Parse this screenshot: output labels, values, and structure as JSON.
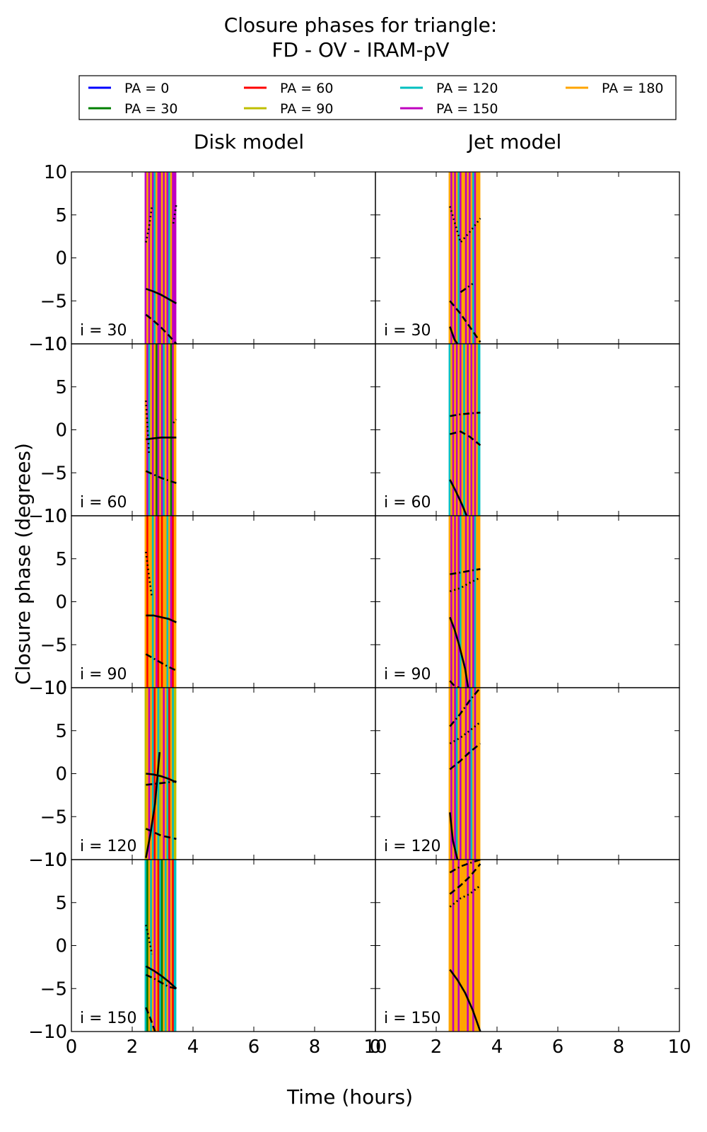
{
  "chart_data": {
    "type": "line",
    "title": "Closure phases for triangle:",
    "subtitle": "FD - OV - IRAM-pV",
    "xlabel": "Time (hours)",
    "ylabel": "Closure phase (degrees)",
    "xlim": [
      0,
      10
    ],
    "ylim": [
      -10,
      10
    ],
    "xticks": [
      0,
      2,
      4,
      6,
      8,
      10
    ],
    "yticks": [
      -10,
      -5,
      0,
      5,
      10
    ],
    "legend_position": "top",
    "legend": [
      {
        "label": "PA = 0",
        "color": "#0000ff"
      },
      {
        "label": "PA = 30",
        "color": "#008000"
      },
      {
        "label": "PA = 60",
        "color": "#ff0000"
      },
      {
        "label": "PA = 90",
        "color": "#bfbf00"
      },
      {
        "label": "PA = 120",
        "color": "#00bfbf"
      },
      {
        "label": "PA = 150",
        "color": "#bf00bf"
      },
      {
        "label": "PA = 180",
        "color": "#ffa500"
      }
    ],
    "columns": [
      "Disk model",
      "Jet model"
    ],
    "rows": [
      "i = 30",
      "i = 60",
      "i = 90",
      "i = 120",
      "i = 150"
    ],
    "panels": [
      {
        "row": 0,
        "col": 0,
        "stripes": {
          "start": 2.45,
          "end": 3.45,
          "step": 0.06,
          "colors": [
            "#bf00bf",
            "#ffa500",
            "#bf00bf",
            "#ffa500",
            "#bf00bf",
            "#00bfbf",
            "#ffa500",
            "#bf00bf"
          ]
        },
        "curves": [
          {
            "x": [
              2.45,
              2.7,
              2.95,
              3.2,
              3.45
            ],
            "y": [
              -3.6,
              -3.9,
              -4.3,
              -4.8,
              -5.3
            ],
            "dash": "solid"
          },
          {
            "x": [
              2.45,
              2.7,
              2.95,
              3.2,
              3.45
            ],
            "y": [
              -6.6,
              -7.3,
              -8.1,
              -9.0,
              -10.0
            ],
            "dash": "dashed"
          },
          {
            "x": [
              2.45,
              2.55,
              2.65
            ],
            "y": [
              1.8,
              3.5,
              6.0
            ],
            "dash": "dotted"
          },
          {
            "x": [
              3.35,
              3.45
            ],
            "y": [
              4.0,
              6.2
            ],
            "dash": "dotted"
          }
        ]
      },
      {
        "row": 0,
        "col": 1,
        "stripes": {
          "start": 2.45,
          "end": 3.45,
          "step": 0.06,
          "colors": [
            "#ffa500",
            "#bf00bf",
            "#ffa500",
            "#bf00bf",
            "#ffa500",
            "#00bfbf",
            "#bf00bf",
            "#ffa500"
          ]
        },
        "curves": [
          {
            "x": [
              2.45,
              2.6,
              2.7
            ],
            "y": [
              -8.0,
              -9.5,
              -10.0
            ],
            "dash": "solid"
          },
          {
            "x": [
              2.45,
              2.8,
              3.1,
              3.45
            ],
            "y": [
              -5.0,
              -6.5,
              -8.0,
              -9.8
            ],
            "dash": "dashed"
          },
          {
            "x": [
              2.45,
              2.8,
              3.1,
              3.45
            ],
            "y": [
              6.0,
              1.8,
              3.0,
              4.6
            ],
            "dash": "dotted"
          },
          {
            "x": [
              2.8,
              3.2
            ],
            "y": [
              -4.0,
              -3.0
            ],
            "dash": "dashdot"
          }
        ]
      },
      {
        "row": 1,
        "col": 0,
        "stripes": {
          "start": 2.45,
          "end": 3.45,
          "step": 0.06,
          "colors": [
            "#ffa500",
            "#bf00bf",
            "#00bfbf",
            "#ffa500",
            "#bf00bf",
            "#ffa500",
            "#008000",
            "#bf00bf"
          ]
        },
        "curves": [
          {
            "x": [
              2.45,
              2.7,
              2.95,
              3.2,
              3.45
            ],
            "y": [
              -1.1,
              -1.0,
              -0.9,
              -0.9,
              -0.9
            ],
            "dash": "solid"
          },
          {
            "x": [
              2.45,
              2.7,
              2.95,
              3.2,
              3.45
            ],
            "y": [
              -4.8,
              -5.2,
              -5.6,
              -5.9,
              -6.2
            ],
            "dash": "dashdot"
          },
          {
            "x": [
              2.45,
              2.5,
              2.55
            ],
            "y": [
              3.4,
              0.5,
              -2.8
            ],
            "dash": "dotted"
          },
          {
            "x": [
              3.35,
              3.45
            ],
            "y": [
              0.8,
              1.2
            ],
            "dash": "dotted"
          }
        ]
      },
      {
        "row": 1,
        "col": 1,
        "stripes": {
          "start": 2.45,
          "end": 3.45,
          "step": 0.06,
          "colors": [
            "#00bfbf",
            "#ffa500",
            "#bf00bf",
            "#ffa500",
            "#bf00bf",
            "#ffa500",
            "#bf00bf",
            "#ffa500"
          ]
        },
        "curves": [
          {
            "x": [
              2.45,
              2.65,
              2.85,
              3.0
            ],
            "y": [
              -5.8,
              -7.2,
              -8.7,
              -10.0
            ],
            "dash": "solid"
          },
          {
            "x": [
              2.45,
              2.8,
              3.1,
              3.45
            ],
            "y": [
              1.6,
              1.8,
              1.9,
              2.0
            ],
            "dash": "dashdot"
          },
          {
            "x": [
              2.45,
              2.8,
              3.1,
              3.45
            ],
            "y": [
              -0.5,
              -0.2,
              -0.8,
              -1.8
            ],
            "dash": "dashed"
          }
        ]
      },
      {
        "row": 2,
        "col": 0,
        "stripes": {
          "start": 2.45,
          "end": 3.45,
          "step": 0.06,
          "colors": [
            "#ffa500",
            "#ff0000",
            "#ffa500",
            "#ffa500",
            "#00bfbf",
            "#ffa500",
            "#bf00bf",
            "#ff0000"
          ]
        },
        "curves": [
          {
            "x": [
              2.45,
              2.7,
              2.95,
              3.2,
              3.45
            ],
            "y": [
              -1.6,
              -1.6,
              -1.8,
              -2.0,
              -2.4
            ],
            "dash": "solid"
          },
          {
            "x": [
              2.45,
              2.7,
              2.95,
              3.2,
              3.45
            ],
            "y": [
              -6.1,
              -6.6,
              -7.1,
              -7.6,
              -8.0
            ],
            "dash": "dashdot"
          },
          {
            "x": [
              2.45,
              2.55,
              2.65
            ],
            "y": [
              5.8,
              3.0,
              0.5
            ],
            "dash": "dotted"
          }
        ]
      },
      {
        "row": 2,
        "col": 1,
        "stripes": {
          "start": 2.45,
          "end": 3.45,
          "step": 0.06,
          "colors": [
            "#ffa500",
            "#bf00bf",
            "#ffa500",
            "#bf00bf",
            "#ffa500",
            "#bf00bf",
            "#00bfbf",
            "#ffa500"
          ]
        },
        "curves": [
          {
            "x": [
              2.45,
              2.6,
              2.75,
              2.95,
              3.05
            ],
            "y": [
              -1.8,
              -3.2,
              -5.0,
              -7.8,
              -10.0
            ],
            "dash": "solid"
          },
          {
            "x": [
              2.45,
              2.8,
              3.1,
              3.45
            ],
            "y": [
              3.2,
              3.4,
              3.6,
              3.8
            ],
            "dash": "dashdot"
          },
          {
            "x": [
              2.45,
              2.8,
              3.1,
              3.45
            ],
            "y": [
              1.2,
              1.6,
              2.2,
              2.8
            ],
            "dash": "dotted"
          },
          {
            "x": [
              2.45,
              2.6,
              2.75
            ],
            "y": [
              -9.2,
              -9.8,
              -10.0
            ],
            "dash": "dashed"
          }
        ]
      },
      {
        "row": 3,
        "col": 0,
        "stripes": {
          "start": 2.45,
          "end": 3.45,
          "step": 0.06,
          "colors": [
            "#bfbf00",
            "#ffa500",
            "#bf00bf",
            "#ffa500",
            "#00bfbf",
            "#ff0000",
            "#ffa500",
            "#00bfbf"
          ]
        },
        "curves": [
          {
            "x": [
              2.45,
              2.7,
              2.95,
              3.2,
              3.45
            ],
            "y": [
              0.0,
              -0.1,
              -0.3,
              -0.6,
              -1.0
            ],
            "dash": "solid"
          },
          {
            "x": [
              2.45,
              2.7,
              2.95,
              3.2,
              3.45
            ],
            "y": [
              -1.3,
              -1.2,
              -1.1,
              -1.0,
              -0.9
            ],
            "dash": "dashdot"
          },
          {
            "x": [
              2.45,
              2.7,
              2.95,
              3.2,
              3.45
            ],
            "y": [
              -6.4,
              -6.8,
              -7.2,
              -7.4,
              -7.6
            ],
            "dash": "dashed"
          },
          {
            "x": [
              2.45,
              2.6,
              2.75,
              2.9
            ],
            "y": [
              -9.8,
              -7.0,
              -3.5,
              2.5
            ],
            "dash": "solid"
          }
        ]
      },
      {
        "row": 3,
        "col": 1,
        "stripes": {
          "start": 2.45,
          "end": 3.45,
          "step": 0.06,
          "colors": [
            "#ffa500",
            "#bf00bf",
            "#ffa500",
            "#bf00bf",
            "#00bfbf",
            "#ffa500",
            "#bf00bf",
            "#ffa500"
          ]
        },
        "curves": [
          {
            "x": [
              2.45,
              2.55,
              2.7
            ],
            "y": [
              -4.5,
              -7.8,
              -10.0
            ],
            "dash": "solid"
          },
          {
            "x": [
              2.45,
              2.8,
              3.1,
              3.45
            ],
            "y": [
              5.5,
              7.0,
              8.5,
              10.0
            ],
            "dash": "dashdot"
          },
          {
            "x": [
              2.45,
              2.8,
              3.1,
              3.45
            ],
            "y": [
              3.5,
              4.2,
              5.0,
              6.0
            ],
            "dash": "dotted"
          },
          {
            "x": [
              2.45,
              2.8,
              3.1,
              3.45
            ],
            "y": [
              0.5,
              1.5,
              2.5,
              3.5
            ],
            "dash": "dashed"
          }
        ]
      },
      {
        "row": 4,
        "col": 0,
        "stripes": {
          "start": 2.45,
          "end": 3.45,
          "step": 0.06,
          "colors": [
            "#00bfbf",
            "#008000",
            "#ffa500",
            "#00bfbf",
            "#ffa500",
            "#bf00bf",
            "#ffa500",
            "#ff0000"
          ]
        },
        "curves": [
          {
            "x": [
              2.45,
              2.7,
              2.95,
              3.2,
              3.45
            ],
            "y": [
              -2.4,
              -2.9,
              -3.5,
              -4.2,
              -5.0
            ],
            "dash": "solid"
          },
          {
            "x": [
              2.45,
              2.7,
              2.95,
              3.2,
              3.45
            ],
            "y": [
              -3.4,
              -3.8,
              -4.3,
              -4.8,
              -5.0
            ],
            "dash": "dashdot"
          },
          {
            "x": [
              2.45,
              2.6,
              2.75
            ],
            "y": [
              -7.2,
              -8.5,
              -10.0
            ],
            "dash": "dashed"
          },
          {
            "x": [
              2.45,
              2.55,
              2.65
            ],
            "y": [
              2.4,
              0.8,
              -1.0
            ],
            "dash": "dotted"
          }
        ]
      },
      {
        "row": 4,
        "col": 1,
        "stripes": {
          "start": 2.45,
          "end": 3.45,
          "step": 0.06,
          "colors": [
            "#ffa500",
            "#ffa500",
            "#bf00bf",
            "#ffa500",
            "#ffa500",
            "#bf00bf",
            "#ffa500",
            "#ffa500"
          ]
        },
        "curves": [
          {
            "x": [
              2.45,
              2.7,
              2.95,
              3.2,
              3.45
            ],
            "y": [
              -2.8,
              -4.0,
              -5.5,
              -7.5,
              -10.0
            ],
            "dash": "solid"
          },
          {
            "x": [
              2.45,
              2.8,
              3.1,
              3.45
            ],
            "y": [
              8.5,
              9.2,
              9.6,
              10.0
            ],
            "dash": "dashdot"
          },
          {
            "x": [
              2.45,
              2.8,
              3.1,
              3.45
            ],
            "y": [
              6.0,
              7.0,
              8.0,
              9.5
            ],
            "dash": "dashed"
          },
          {
            "x": [
              2.45,
              2.8,
              3.1,
              3.45
            ],
            "y": [
              4.5,
              5.5,
              6.0,
              7.0
            ],
            "dash": "dotted"
          }
        ]
      }
    ]
  }
}
